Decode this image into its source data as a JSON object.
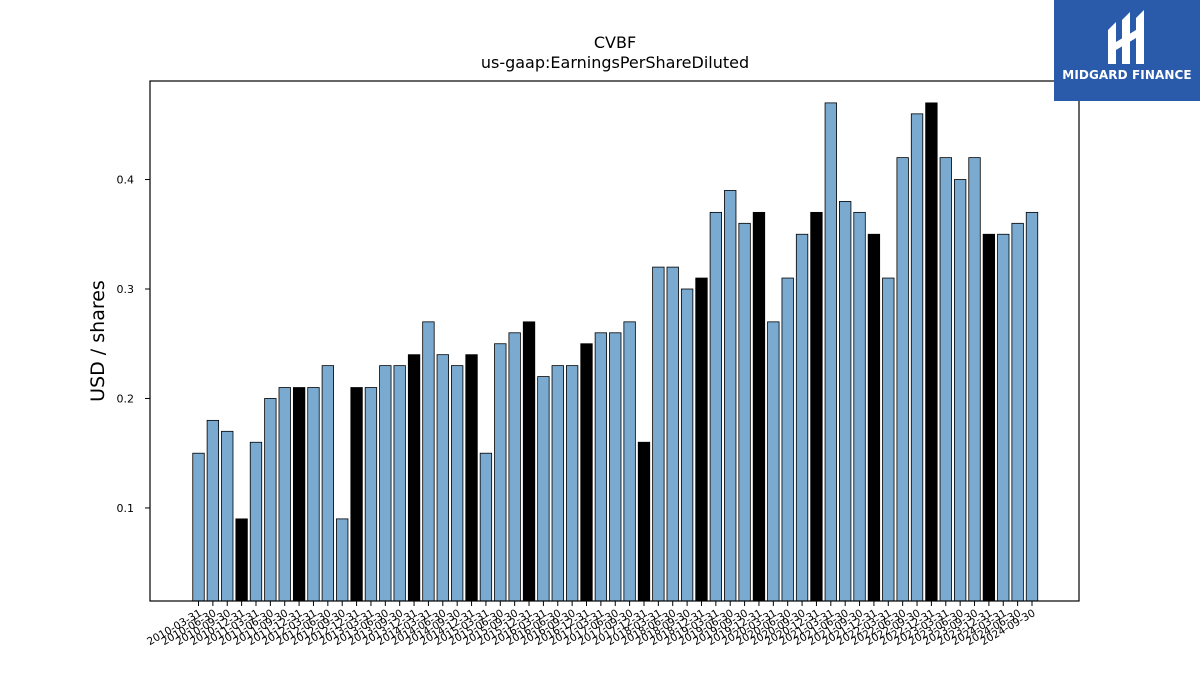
{
  "brand": {
    "name": "MIDGARD FINANCE",
    "colors": {
      "background": "#2a5aaa",
      "text": "#ffffff"
    }
  },
  "chart_data": {
    "type": "bar",
    "title": "CVBF",
    "subtitle": "us-gaap:EarningsPerShareDiluted",
    "xlabel": "",
    "ylabel": "USD / shares",
    "ylim": [
      0.015,
      0.49
    ],
    "yticks": [
      "0.1",
      "0.2",
      "0.3",
      "0.4"
    ],
    "grid": false,
    "colors": {
      "quarterly": "#7aaad0",
      "annual": "#000000",
      "edge": "#000000"
    },
    "categories": [
      "2010-03-31",
      "2010-06-30",
      "2010-09-30",
      "2010-12-31",
      "2011-03-31",
      "2011-06-30",
      "2011-09-30",
      "2011-12-31",
      "2012-03-31",
      "2012-06-30",
      "2012-09-30",
      "2012-12-31",
      "2013-03-31",
      "2013-06-30",
      "2013-09-30",
      "2013-12-31",
      "2014-03-31",
      "2014-06-30",
      "2014-09-30",
      "2014-12-31",
      "2015-03-31",
      "2015-06-30",
      "2015-09-30",
      "2015-12-31",
      "2016-03-31",
      "2016-06-30",
      "2016-09-30",
      "2016-12-31",
      "2017-03-31",
      "2017-06-30",
      "2017-09-30",
      "2017-12-31",
      "2018-03-31",
      "2018-06-30",
      "2018-09-30",
      "2018-12-31",
      "2019-03-31",
      "2019-06-30",
      "2019-09-30",
      "2019-12-31",
      "2020-03-31",
      "2020-06-30",
      "2020-09-30",
      "2020-12-31",
      "2021-03-31",
      "2021-06-30",
      "2021-09-30",
      "2021-12-31",
      "2022-03-31",
      "2022-06-30",
      "2022-09-30",
      "2022-12-31",
      "2023-03-31",
      "2023-06-30",
      "2023-09-30",
      "2023-12-31",
      "2024-03-31",
      "2024-06-30",
      "2024-09-30"
    ],
    "values": [
      0.15,
      0.18,
      0.17,
      0.09,
      0.16,
      0.2,
      0.21,
      0.21,
      0.21,
      0.23,
      0.09,
      0.21,
      0.21,
      0.23,
      0.23,
      0.24,
      0.27,
      0.24,
      0.23,
      0.24,
      0.15,
      0.25,
      0.26,
      0.27,
      0.22,
      0.23,
      0.23,
      0.25,
      0.26,
      0.26,
      0.27,
      0.16,
      0.32,
      0.32,
      0.3,
      0.31,
      0.37,
      0.39,
      0.36,
      0.37,
      0.27,
      0.31,
      0.35,
      0.37,
      0.47,
      0.38,
      0.37,
      0.35,
      0.31,
      0.42,
      0.46,
      0.47,
      0.42,
      0.4,
      0.42,
      0.35,
      0.35,
      0.36,
      0.37
    ],
    "annual_flags": [
      false,
      false,
      false,
      true,
      false,
      false,
      false,
      true,
      false,
      false,
      false,
      true,
      false,
      false,
      false,
      true,
      false,
      false,
      false,
      true,
      false,
      false,
      false,
      true,
      false,
      false,
      false,
      true,
      false,
      false,
      false,
      true,
      false,
      false,
      false,
      true,
      false,
      false,
      false,
      true,
      false,
      false,
      false,
      true,
      false,
      false,
      false,
      true,
      false,
      false,
      false,
      true,
      false,
      false,
      false,
      true,
      false,
      false,
      false
    ]
  }
}
